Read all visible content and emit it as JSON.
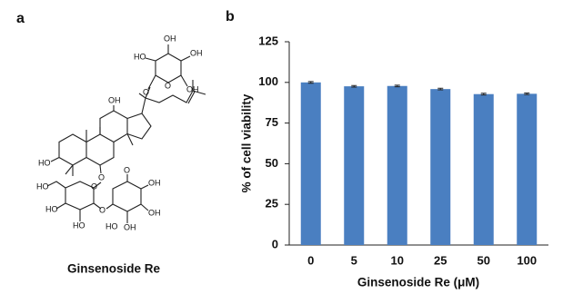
{
  "panel_a": {
    "letter": "a",
    "caption": "Ginsenoside Re",
    "atom_labels": [
      "HO",
      "OH",
      "OH",
      "OH",
      "O",
      "O",
      "OH",
      "HO",
      "O",
      "O",
      "HO",
      "HO",
      "O",
      "HO",
      "O",
      "OH",
      "OH",
      "OH",
      "HO"
    ]
  },
  "chart_data": {
    "type": "bar",
    "panel_label": "b",
    "x_label": "Ginsenoside Re (μM)",
    "y_label": "% of cell viability",
    "categories": [
      "0",
      "5",
      "10",
      "25",
      "50",
      "100"
    ],
    "values": [
      100,
      97.6,
      97.8,
      95.9,
      92.8,
      93.0
    ],
    "errors": [
      0.5,
      0.5,
      0.5,
      0.5,
      0.5,
      0.5
    ],
    "color": "#4a7fc1",
    "ylim": [
      0,
      125
    ],
    "yticks": [
      0,
      25,
      50,
      75,
      100,
      125
    ],
    "grid": false
  }
}
